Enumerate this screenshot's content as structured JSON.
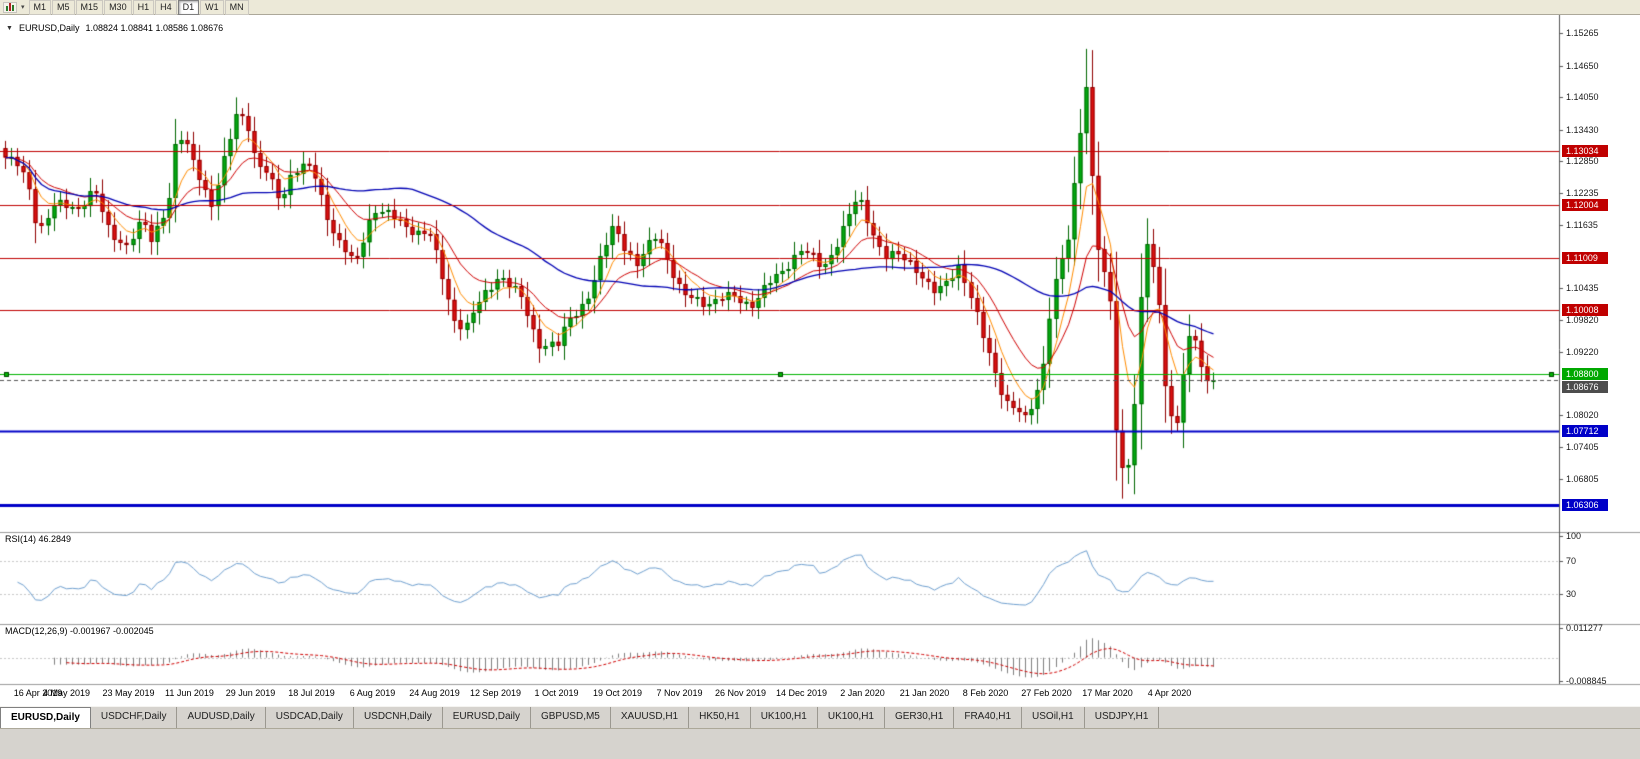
{
  "toolbar": {
    "chart_type_icon": "candlestick-chart",
    "dropdown_icon": "chevron-down",
    "timeframes": [
      "M1",
      "M5",
      "M15",
      "M30",
      "H1",
      "H4",
      "D1",
      "W1",
      "MN"
    ],
    "active_timeframe": "D1"
  },
  "chart_header": {
    "collapse_icon": "triangle-down",
    "symbol_text": "EURUSD,Daily",
    "ohlc_text": "1.08824 1.08841 1.08586 1.08676"
  },
  "price_axis": {
    "ticks": [
      "1.15265",
      "1.14650",
      "1.14050",
      "1.13430",
      "1.12850",
      "1.12235",
      "1.11635",
      "1.10435",
      "1.09820",
      "1.09220",
      "1.08020",
      "1.07405",
      "1.06805"
    ],
    "badges": [
      {
        "text": "1.13034",
        "color": "#C00000"
      },
      {
        "text": "1.12004",
        "color": "#C00000"
      },
      {
        "text": "1.11009",
        "color": "#C00000"
      },
      {
        "text": "1.10008",
        "color": "#C00000"
      },
      {
        "text": "1.08800",
        "color": "#00A800"
      },
      {
        "text": "1.08676",
        "color": "#4D4D4D"
      },
      {
        "text": "1.07712",
        "color": "#0000C8"
      },
      {
        "text": "1.06306",
        "color": "#0000C8"
      }
    ]
  },
  "rsi_panel": {
    "label": "RSI(14) 46.2849",
    "ticks": [
      "100",
      "70",
      "30"
    ]
  },
  "macd_panel": {
    "label": "MACD(12,26,9) -0.001967 -0.002045",
    "ticks": [
      "0.011277",
      "-0.008845"
    ]
  },
  "date_axis": [
    "16 Apr 2019",
    "4 May 2019",
    "23 May 2019",
    "11 Jun 2019",
    "29 Jun 2019",
    "18 Jul 2019",
    "6 Aug 2019",
    "24 Aug 2019",
    "12 Sep 2019",
    "1 Oct 2019",
    "19 Oct 2019",
    "7 Nov 2019",
    "26 Nov 2019",
    "14 Dec 2019",
    "2 Jan 2020",
    "21 Jan 2020",
    "8 Feb 2020",
    "27 Feb 2020",
    "17 Mar 2020",
    "4 Apr 2020"
  ],
  "tabs": [
    "EURUSD,Daily",
    "USDCHF,Daily",
    "AUDUSD,Daily",
    "USDCAD,Daily",
    "USDCNH,Daily",
    "EURUSD,Daily",
    "GBPUSD,M5",
    "XAUUSD,H1",
    "HK50,H1",
    "UK100,H1",
    "UK100,H1",
    "GER30,H1",
    "FRA40,H1",
    "USOil,H1",
    "USDJPY,H1"
  ],
  "active_tab_index": 0,
  "chart_data": {
    "type": "candlestick",
    "symbol": "EURUSD",
    "period": "Daily",
    "last_ohlc": {
      "open": 1.08824,
      "high": 1.08841,
      "low": 1.08586,
      "close": 1.08676
    },
    "y_range": [
      1.058,
      1.1548
    ],
    "candles": {
      "count": 200,
      "visible_fraction": 0.78,
      "close_anchors": [
        [
          0.0,
          1.129
        ],
        [
          0.012,
          1.1268
        ],
        [
          0.022,
          1.1226
        ],
        [
          0.027,
          1.1152
        ],
        [
          0.041,
          1.1196
        ],
        [
          0.06,
          1.12
        ],
        [
          0.074,
          1.1226
        ],
        [
          0.084,
          1.1158
        ],
        [
          0.101,
          1.1126
        ],
        [
          0.114,
          1.1166
        ],
        [
          0.12,
          1.113
        ],
        [
          0.136,
          1.122
        ],
        [
          0.142,
          1.1334
        ],
        [
          0.155,
          1.129
        ],
        [
          0.172,
          1.12
        ],
        [
          0.191,
          1.137
        ],
        [
          0.199,
          1.1378
        ],
        [
          0.207,
          1.1286
        ],
        [
          0.229,
          1.121
        ],
        [
          0.237,
          1.127
        ],
        [
          0.253,
          1.1268
        ],
        [
          0.272,
          1.115
        ],
        [
          0.289,
          1.108
        ],
        [
          0.305,
          1.12
        ],
        [
          0.324,
          1.1168
        ],
        [
          0.351,
          1.1146
        ],
        [
          0.371,
          1.099
        ],
        [
          0.381,
          1.0968
        ],
        [
          0.401,
          1.1046
        ],
        [
          0.409,
          1.1074
        ],
        [
          0.428,
          1.1016
        ],
        [
          0.441,
          1.0942
        ],
        [
          0.458,
          1.0932
        ],
        [
          0.466,
          1.098
        ],
        [
          0.485,
          1.104
        ],
        [
          0.504,
          1.1166
        ],
        [
          0.523,
          1.1082
        ],
        [
          0.54,
          1.115
        ],
        [
          0.561,
          1.1022
        ],
        [
          0.578,
          1.102
        ],
        [
          0.599,
          1.1022
        ],
        [
          0.619,
          1.1018
        ],
        [
          0.638,
          1.106
        ],
        [
          0.657,
          1.112
        ],
        [
          0.676,
          1.1078
        ],
        [
          0.706,
          1.1212
        ],
        [
          0.728,
          1.1104
        ],
        [
          0.752,
          1.1092
        ],
        [
          0.771,
          1.1024
        ],
        [
          0.79,
          1.1094
        ],
        [
          0.809,
          1.0946
        ],
        [
          0.828,
          1.0832
        ],
        [
          0.845,
          1.0786
        ],
        [
          0.858,
          1.0882
        ],
        [
          0.866,
          1.1026
        ],
        [
          0.88,
          1.1136
        ],
        [
          0.894,
          1.145
        ],
        [
          0.899,
          1.127
        ],
        [
          0.905,
          1.1106
        ],
        [
          0.916,
          1.0996
        ],
        [
          0.921,
          1.0692
        ],
        [
          0.932,
          1.0726
        ],
        [
          0.943,
          1.114
        ],
        [
          0.954,
          1.1032
        ],
        [
          0.962,
          1.0808
        ],
        [
          0.97,
          1.0792
        ],
        [
          0.978,
          1.093
        ],
        [
          0.984,
          1.0952
        ],
        [
          0.992,
          1.0874
        ],
        [
          1.0,
          1.08676
        ]
      ]
    },
    "horizontal_lines": [
      {
        "price": 1.13034,
        "color": "#C00000",
        "width": 1,
        "style": "solid"
      },
      {
        "price": 1.12004,
        "color": "#C00000",
        "width": 1,
        "style": "solid"
      },
      {
        "price": 1.11009,
        "color": "#C00000",
        "width": 1,
        "style": "solid"
      },
      {
        "price": 1.10008,
        "color": "#C00000",
        "width": 1,
        "style": "solid"
      },
      {
        "price": 1.088,
        "color": "#00B400",
        "width": 1,
        "style": "solid",
        "selected": true
      },
      {
        "price": 1.08676,
        "color": "#555555",
        "width": 1,
        "style": "dashed"
      },
      {
        "price": 1.07712,
        "color": "#0000C8",
        "width": 2,
        "style": "solid"
      },
      {
        "price": 1.06306,
        "color": "#0000C8",
        "width": 3,
        "style": "solid"
      }
    ],
    "moving_averages": [
      {
        "period": 6,
        "method": "ema",
        "color": "#FF8C00"
      },
      {
        "period": 14,
        "method": "ema",
        "color": "#D00000"
      },
      {
        "period": 40,
        "method": "sma",
        "color": "#0000B4"
      }
    ],
    "colors": {
      "bull": "#00AE10",
      "bull_border": "#006600",
      "bear": "#E01010",
      "bear_border": "#900000"
    },
    "rsi": {
      "period": 14,
      "value": 46.2849,
      "levels": [
        70,
        30
      ],
      "scale": [
        0,
        100
      ],
      "color": "#6FA0D0"
    },
    "macd": {
      "fast": 12,
      "slow": 26,
      "signal_period": 9,
      "value": -0.001967,
      "signal_value": -0.002045,
      "scale": [
        -0.008845,
        0.011277
      ],
      "histogram_color": "#808080",
      "signal_color": "#D00000"
    },
    "x_labels_day_step": 18.6,
    "total_days": 367
  }
}
